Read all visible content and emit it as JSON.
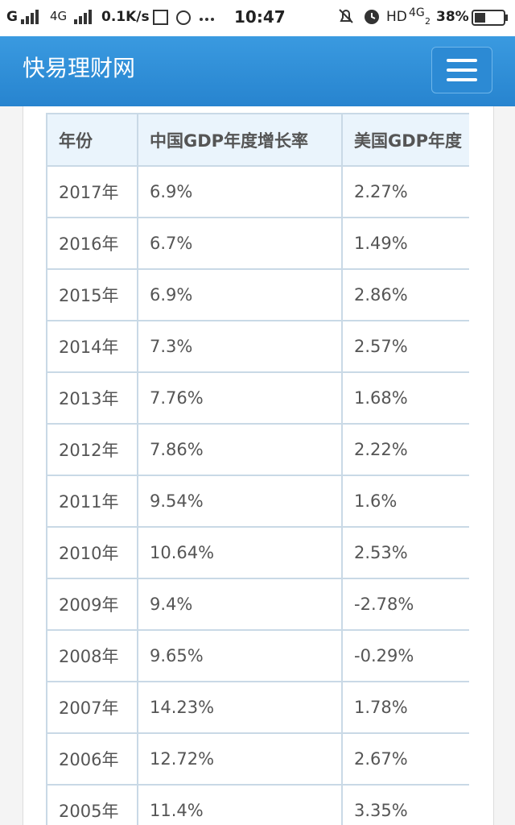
{
  "status_bar": {
    "carrier1": "G",
    "carrier2": "4G",
    "speed": "0.1K/s",
    "time": "10:47",
    "hd": "HD",
    "carrier3": "4G",
    "sim": "2",
    "battery": "38%"
  },
  "header": {
    "title": "快易理财网"
  },
  "table": {
    "columns": [
      "年份",
      "中国GDP年度增长率",
      "美国GDP年度"
    ],
    "rows": [
      [
        "2017年",
        "6.9%",
        "2.27%"
      ],
      [
        "2016年",
        "6.7%",
        "1.49%"
      ],
      [
        "2015年",
        "6.9%",
        "2.86%"
      ],
      [
        "2014年",
        "7.3%",
        "2.57%"
      ],
      [
        "2013年",
        "7.76%",
        "1.68%"
      ],
      [
        "2012年",
        "7.86%",
        "2.22%"
      ],
      [
        "2011年",
        "9.54%",
        "1.6%"
      ],
      [
        "2010年",
        "10.64%",
        "2.53%"
      ],
      [
        "2009年",
        "9.4%",
        "-2.78%"
      ],
      [
        "2008年",
        "9.65%",
        "-0.29%"
      ],
      [
        "2007年",
        "14.23%",
        "1.78%"
      ],
      [
        "2006年",
        "12.72%",
        "2.67%"
      ],
      [
        "2005年",
        "11.4%",
        "3.35%"
      ]
    ]
  }
}
